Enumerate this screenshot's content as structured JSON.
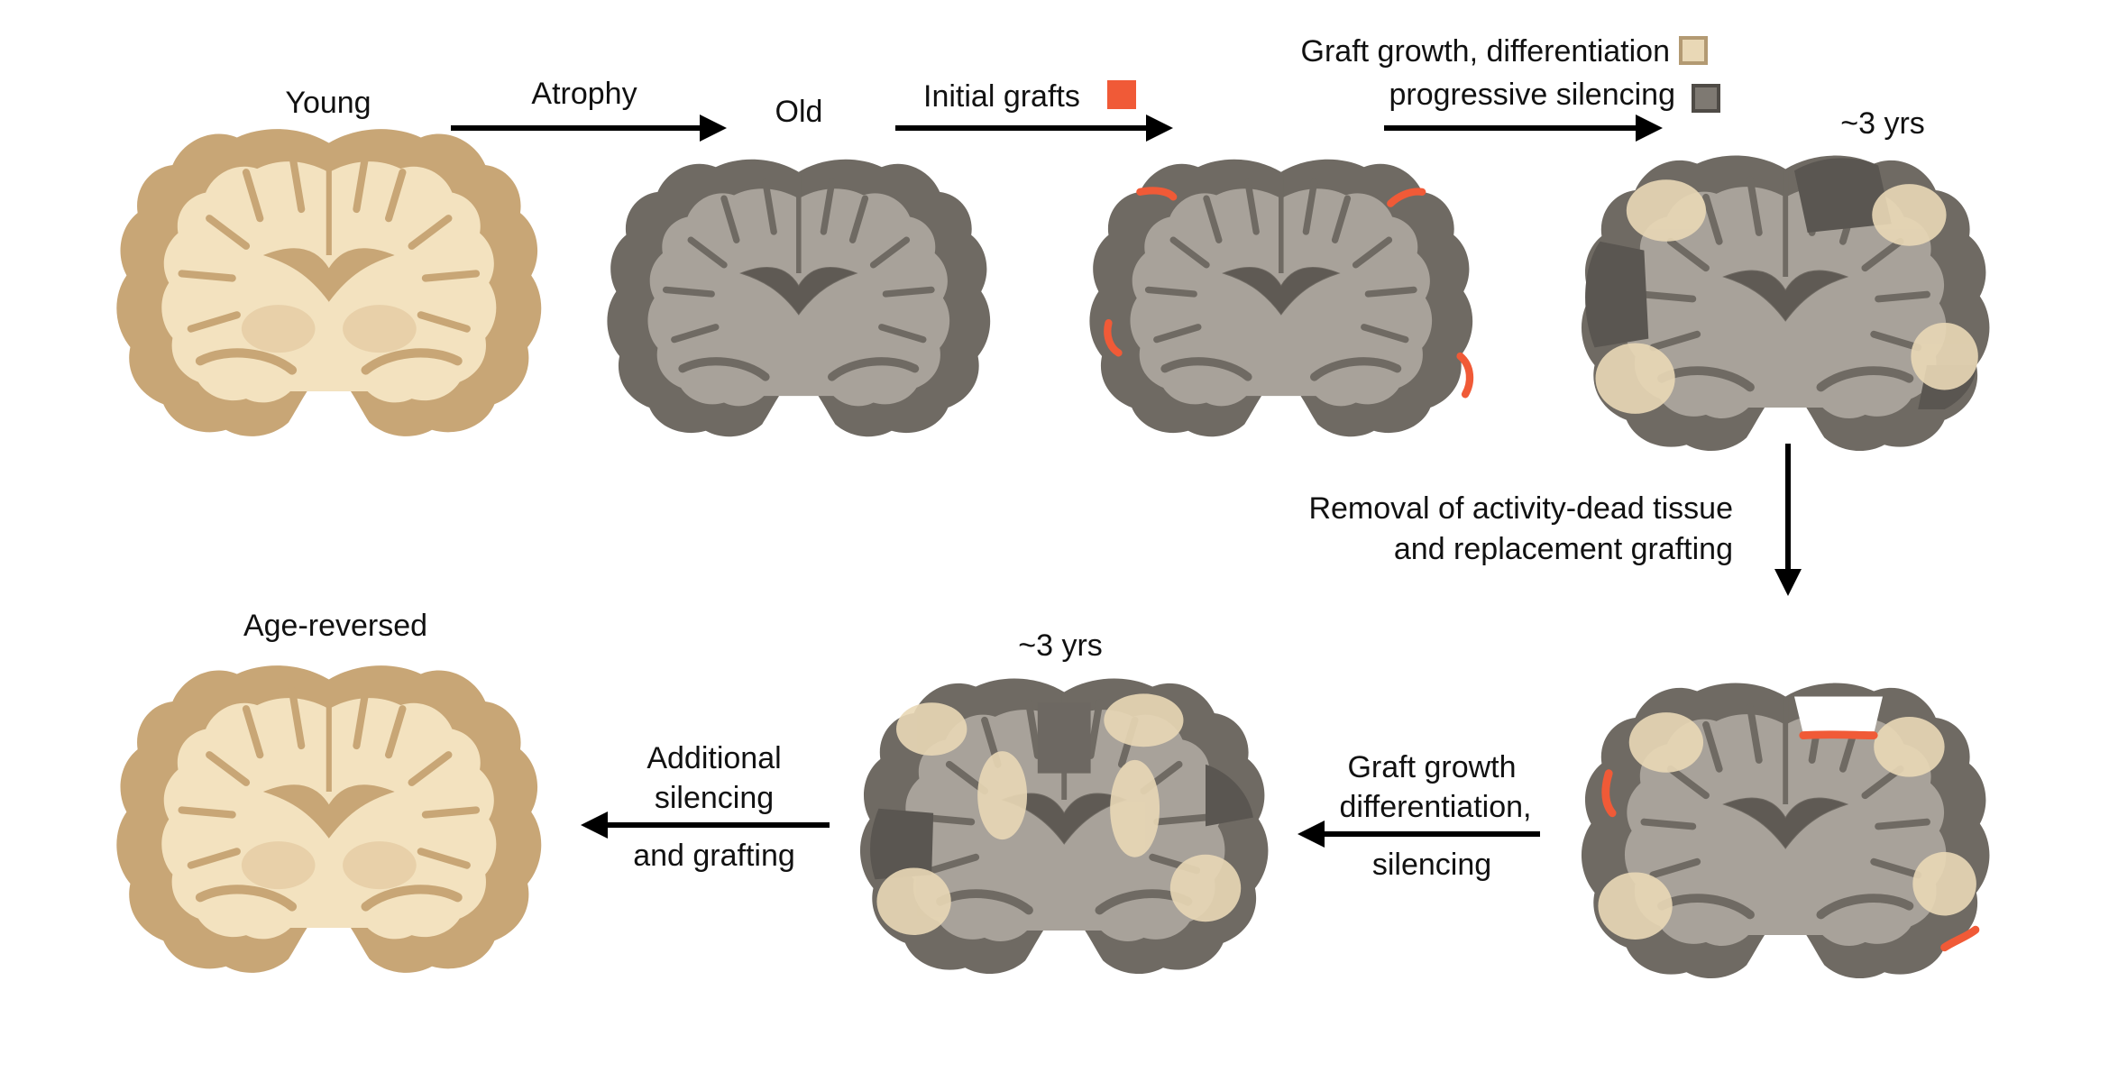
{
  "labels": {
    "young": "Young",
    "atrophy": "Atrophy",
    "old": "Old",
    "initial_grafts": "Initial grafts",
    "graft_growth_differentiation": "Graft growth, differentiation",
    "progressive_silencing": "progressive silencing",
    "three_yrs_top": "~3 yrs",
    "removal_line1": "Removal of activity-dead tissue",
    "removal_line2": "and replacement grafting",
    "age_reversed": "Age-reversed",
    "additional_line1": "Additional",
    "additional_line2": "silencing",
    "additional_line3": "and grafting",
    "three_yrs_bottom": "~3 yrs",
    "graft_growth2_line1": "Graft growth",
    "graft_growth2_line2": "differentiation,",
    "graft_growth2_line3": "silencing"
  },
  "colors": {
    "young_tissue": "#f3e2bf",
    "young_cortex": "#c8a676",
    "old_tissue": "#a8a29a",
    "old_cortex": "#6f6a63",
    "graft": "#f05a37",
    "grown_graft": "#e9d8b6",
    "silenced": "#5a5651",
    "arrow": "#000000"
  },
  "legend": {
    "initial_graft_icon": "red-square-icon",
    "growth_icon": "beige-square-icon",
    "silencing_icon": "dark-gray-square-icon"
  }
}
